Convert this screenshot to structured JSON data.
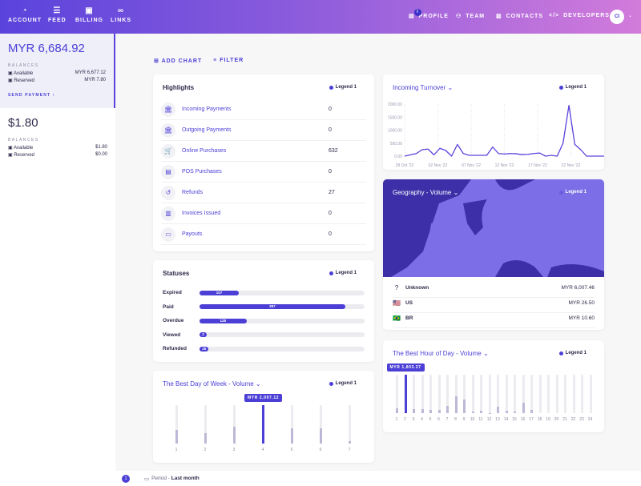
{
  "header": {
    "nav": [
      {
        "label": "ACCOUNT",
        "icon": "pie-chart-icon"
      },
      {
        "label": "FEED",
        "icon": "list-icon"
      },
      {
        "label": "BILLING",
        "icon": "document-icon"
      },
      {
        "label": "LINKS",
        "icon": "link-icon"
      }
    ],
    "right_nav": [
      {
        "label": "PROFILE",
        "icon": "profile-icon",
        "badge": "i"
      },
      {
        "label": "TEAM",
        "icon": "team-icon"
      },
      {
        "label": "CONTACTS",
        "icon": "contacts-icon"
      },
      {
        "label": "DEVELOPERS",
        "icon": "code-icon"
      }
    ],
    "avatar": "CI"
  },
  "sidebar": {
    "accounts": [
      {
        "total": "MYR 6,684.92",
        "balances_label": "BALANCES",
        "available_label": "Available",
        "available": "MYR 6,677.12",
        "reserved_label": "Reserved",
        "reserved": "MYR 7.80",
        "action": "SEND PAYMENT ›"
      },
      {
        "total": "$1.80",
        "balances_label": "BALANCES",
        "available_label": "Available",
        "available": "$1.80",
        "reserved_label": "Reserved",
        "reserved": "$0.00"
      }
    ]
  },
  "toolbar": {
    "add_chart": "ADD CHART",
    "filter": "FILTER"
  },
  "legend": "Legend 1",
  "highlights": {
    "title": "Highlights",
    "items": [
      {
        "label": "Incoming Payments",
        "value": "0",
        "icon": "bank-in-icon"
      },
      {
        "label": "Outgoing Payments",
        "value": "0",
        "icon": "bank-out-icon"
      },
      {
        "label": "Online Purchases",
        "value": "632",
        "icon": "cart-icon"
      },
      {
        "label": "POS Purchases",
        "value": "0",
        "icon": "pos-icon"
      },
      {
        "label": "Refunds",
        "value": "27",
        "icon": "refund-icon"
      },
      {
        "label": "Invoices Issued",
        "value": "0",
        "icon": "invoice-icon"
      },
      {
        "label": "Payouts",
        "value": "0",
        "icon": "payout-icon"
      }
    ]
  },
  "statuses": {
    "title": "Statuses",
    "max": 450,
    "items": [
      {
        "label": "Expired",
        "value": 107,
        "text": "107"
      },
      {
        "label": "Paid",
        "value": 397,
        "text": "397"
      },
      {
        "label": "Overdue",
        "value": 128,
        "text": "128"
      },
      {
        "label": "Viewed",
        "value": 2,
        "text": "2"
      },
      {
        "label": "Refunded",
        "value": 25,
        "text": "25"
      }
    ]
  },
  "chart_data": [
    {
      "type": "line",
      "title": "Incoming Turnover",
      "ylim": [
        0,
        2000
      ],
      "yticks": [
        "2000.00",
        "1500.00",
        "1000.00",
        "500.00",
        "0.00"
      ],
      "xticks": [
        "28 Oct '22",
        "02 Nov '22",
        "07 Nov '22",
        "12 Nov '22",
        "17 Nov '22",
        "22 Nov '22"
      ],
      "values": [
        0,
        50,
        100,
        250,
        270,
        50,
        300,
        220,
        0,
        450,
        100,
        30,
        30,
        30,
        30,
        350,
        100,
        80,
        100,
        90,
        60,
        70,
        100,
        120,
        0,
        30,
        0,
        500,
        1950,
        450,
        250,
        0,
        0,
        0,
        0
      ]
    },
    {
      "type": "bar",
      "title": "The Best Day of Week - Volume",
      "categories": [
        "1",
        "2",
        "3",
        "4",
        "5",
        "6",
        "7"
      ],
      "values": [
        734,
        587,
        923,
        2097.12,
        839,
        818,
        147
      ],
      "ymax": 2097.12,
      "tooltip": "MYR 2,097.12"
    },
    {
      "type": "bar",
      "title": "The Best Hour of Day - Volume",
      "categories": [
        "1",
        "2",
        "3",
        "4",
        "5",
        "6",
        "7",
        "8",
        "9",
        "10",
        "11",
        "12",
        "13",
        "14",
        "15",
        "16",
        "17",
        "18",
        "19",
        "20",
        "21",
        "22",
        "23",
        "24"
      ],
      "values": [
        216,
        1803.27,
        180,
        198,
        162,
        162,
        343,
        775,
        649,
        72,
        126,
        18,
        307,
        108,
        72,
        487,
        162,
        0,
        0,
        0,
        0,
        0,
        0,
        0
      ],
      "ymax": 1803.27,
      "tooltip": "MYR 1,803.27"
    }
  ],
  "geography": {
    "title": "Geography - Volume",
    "rows": [
      {
        "country": "Unknown",
        "value": "MYR 6,007.46",
        "flag": "?"
      },
      {
        "country": "US",
        "value": "MYR 26.50",
        "flag": "🇺🇸"
      },
      {
        "country": "BR",
        "value": "MYR 10.60",
        "flag": "🇧🇷"
      }
    ]
  },
  "footer": {
    "count": "1",
    "period_label": "Period - ",
    "period": "Last month"
  },
  "colors": {
    "accent": "#4b3fd6",
    "map_land": "#7b6ee6",
    "map_water": "#3c2fa8"
  }
}
